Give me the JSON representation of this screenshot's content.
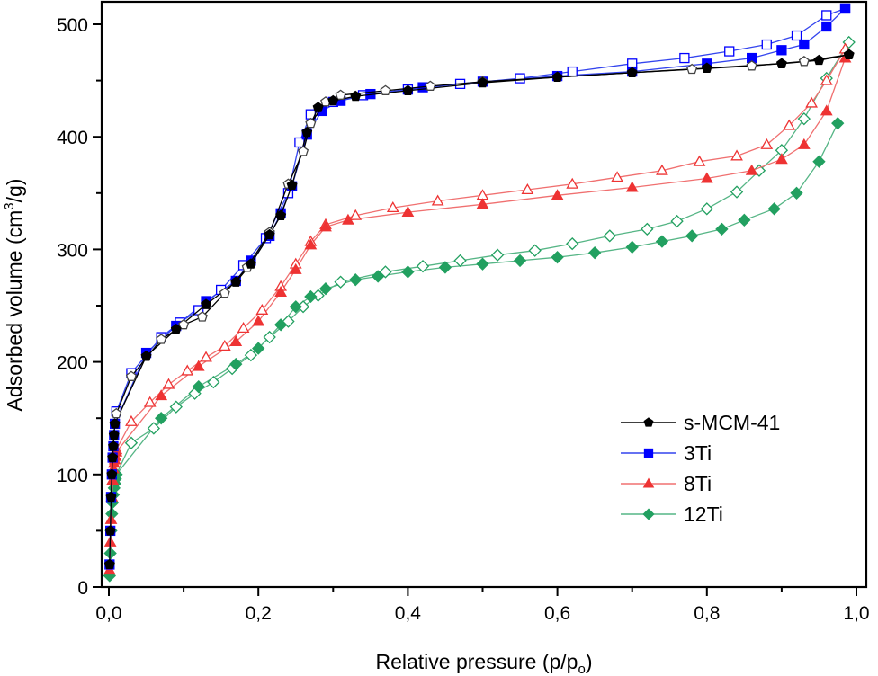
{
  "chart_data": {
    "type": "line",
    "title": "",
    "xlabel": "Relative pressure (p/p",
    "xlabel_sub": "o",
    "xlabel_end": ")",
    "ylabel": "Adsorbed volume (cm",
    "ylabel_sup": "3",
    "ylabel_end": "/g)",
    "xlim": [
      -0.01,
      1.013
    ],
    "ylim": [
      0,
      520
    ],
    "xticks": [
      0.0,
      0.2,
      0.4,
      0.6,
      0.8,
      1.0
    ],
    "xtick_labels": [
      "0,0",
      "0,2",
      "0,4",
      "0,6",
      "0,8",
      "1,0"
    ],
    "xminor": [
      0.1,
      0.3,
      0.5,
      0.7,
      0.9
    ],
    "yticks": [
      0,
      100,
      200,
      300,
      400,
      500
    ],
    "ytick_labels": [
      "0",
      "100",
      "200",
      "300",
      "400",
      "500"
    ],
    "yminor": [
      50,
      150,
      250,
      350,
      450
    ],
    "grid": false,
    "legend_position": "bottom-right",
    "series": [
      {
        "name": "s-MCM-41",
        "color": "#000000",
        "marker": "pentagon",
        "adsorption": {
          "x": [
            0.001,
            0.002,
            0.003,
            0.004,
            0.005,
            0.006,
            0.007,
            0.008,
            0.05,
            0.09,
            0.13,
            0.17,
            0.19,
            0.215,
            0.23,
            0.245,
            0.265,
            0.28,
            0.3,
            0.33,
            0.4,
            0.5,
            0.6,
            0.7,
            0.8,
            0.9,
            0.95,
            0.99
          ],
          "y": [
            20,
            50,
            80,
            100,
            115,
            125,
            135,
            145,
            205,
            229,
            251,
            271,
            287,
            313,
            330,
            357,
            404,
            426,
            432,
            436,
            441,
            448,
            453,
            457,
            461,
            465,
            468,
            473
          ]
        },
        "desorption": {
          "x": [
            0.99,
            0.93,
            0.86,
            0.78,
            0.7,
            0.6,
            0.5,
            0.43,
            0.37,
            0.31,
            0.29,
            0.27,
            0.26,
            0.24,
            0.215,
            0.185,
            0.155,
            0.125,
            0.1,
            0.07,
            0.03,
            0.01
          ],
          "y": [
            473,
            467,
            463,
            460,
            457,
            453,
            449,
            445,
            441,
            437,
            431,
            412,
            387,
            358,
            315,
            284,
            261,
            240,
            233,
            220,
            187,
            154
          ]
        }
      },
      {
        "name": "3Ti",
        "color": "#0000ff",
        "marker": "square",
        "adsorption": {
          "x": [
            0.001,
            0.002,
            0.003,
            0.004,
            0.005,
            0.006,
            0.007,
            0.008,
            0.05,
            0.09,
            0.13,
            0.17,
            0.19,
            0.215,
            0.23,
            0.245,
            0.265,
            0.285,
            0.31,
            0.35,
            0.42,
            0.5,
            0.6,
            0.7,
            0.8,
            0.86,
            0.9,
            0.93,
            0.96,
            0.985
          ],
          "y": [
            20,
            50,
            80,
            100,
            115,
            125,
            135,
            145,
            208,
            232,
            254,
            272,
            290,
            312,
            332,
            356,
            402,
            423,
            432,
            438,
            444,
            449,
            454,
            458,
            465,
            470,
            477,
            482,
            498,
            514
          ]
        },
        "desorption": {
          "x": [
            0.985,
            0.96,
            0.92,
            0.88,
            0.83,
            0.77,
            0.7,
            0.62,
            0.55,
            0.47,
            0.4,
            0.34,
            0.3,
            0.27,
            0.255,
            0.24,
            0.21,
            0.18,
            0.15,
            0.12,
            0.095,
            0.07,
            0.03,
            0.01
          ],
          "y": [
            514,
            508,
            490,
            482,
            476,
            470,
            465,
            458,
            452,
            447,
            442,
            437,
            431,
            420,
            395,
            350,
            310,
            286,
            264,
            246,
            235,
            222,
            190,
            156
          ]
        }
      },
      {
        "name": "8Ti",
        "color": "#ee3333",
        "marker": "triangle",
        "adsorption": {
          "x": [
            0.001,
            0.002,
            0.003,
            0.004,
            0.005,
            0.006,
            0.007,
            0.008,
            0.009,
            0.01,
            0.07,
            0.12,
            0.17,
            0.2,
            0.23,
            0.25,
            0.27,
            0.29,
            0.32,
            0.4,
            0.5,
            0.6,
            0.7,
            0.8,
            0.86,
            0.9,
            0.93,
            0.96,
            0.985
          ],
          "y": [
            15,
            40,
            60,
            80,
            95,
            105,
            110,
            113,
            116,
            120,
            170,
            196,
            218,
            236,
            262,
            282,
            304,
            320,
            326,
            333,
            340,
            348,
            355,
            363,
            370,
            380,
            393,
            423,
            470
          ]
        },
        "desorption": {
          "x": [
            0.985,
            0.96,
            0.94,
            0.91,
            0.88,
            0.84,
            0.79,
            0.74,
            0.68,
            0.62,
            0.56,
            0.5,
            0.44,
            0.38,
            0.33,
            0.29,
            0.27,
            0.25,
            0.23,
            0.205,
            0.18,
            0.155,
            0.13,
            0.105,
            0.08,
            0.055,
            0.03,
            0.01
          ],
          "y": [
            478,
            450,
            430,
            410,
            393,
            383,
            378,
            370,
            364,
            358,
            353,
            348,
            343,
            337,
            330,
            322,
            307,
            287,
            267,
            246,
            230,
            214,
            204,
            192,
            180,
            164,
            147,
            122
          ]
        }
      },
      {
        "name": "12Ti",
        "color": "#22a060",
        "marker": "diamond",
        "adsorption": {
          "x": [
            0.001,
            0.002,
            0.003,
            0.004,
            0.005,
            0.006,
            0.007,
            0.008,
            0.009,
            0.01,
            0.07,
            0.12,
            0.17,
            0.2,
            0.23,
            0.25,
            0.27,
            0.29,
            0.33,
            0.36,
            0.4,
            0.45,
            0.5,
            0.55,
            0.6,
            0.65,
            0.7,
            0.74,
            0.78,
            0.82,
            0.85,
            0.89,
            0.92,
            0.95,
            0.975
          ],
          "y": [
            10,
            30,
            50,
            65,
            75,
            82,
            88,
            92,
            96,
            100,
            150,
            178,
            198,
            212,
            233,
            249,
            258,
            265,
            273,
            276,
            280,
            284,
            287,
            290,
            293,
            297,
            302,
            307,
            312,
            318,
            326,
            336,
            350,
            378,
            412
          ]
        },
        "desorption": {
          "x": [
            0.99,
            0.96,
            0.93,
            0.9,
            0.87,
            0.84,
            0.8,
            0.76,
            0.72,
            0.67,
            0.62,
            0.57,
            0.52,
            0.47,
            0.42,
            0.37,
            0.31,
            0.28,
            0.26,
            0.24,
            0.215,
            0.19,
            0.165,
            0.14,
            0.115,
            0.09,
            0.06,
            0.03,
            0.01
          ],
          "y": [
            484,
            452,
            416,
            388,
            370,
            351,
            336,
            325,
            318,
            312,
            305,
            299,
            295,
            290,
            285,
            280,
            271,
            259,
            249,
            236,
            222,
            206,
            194,
            182,
            172,
            160,
            141,
            128,
            100
          ]
        }
      }
    ]
  }
}
